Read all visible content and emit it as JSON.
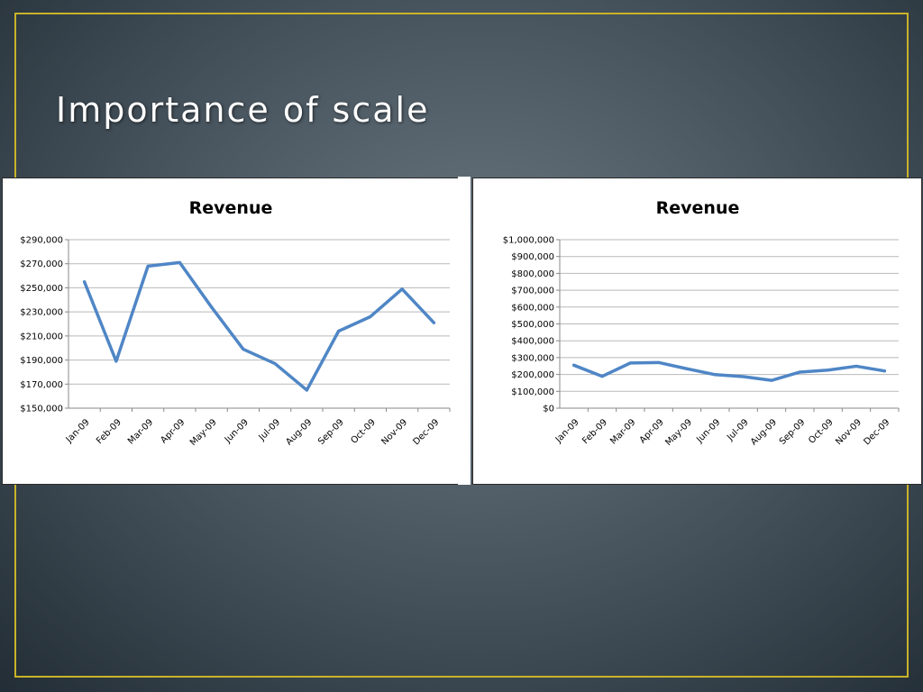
{
  "slide": {
    "title": "Importance of scale",
    "frame_color": "#c9b32a",
    "line_color": "#4f86c6"
  },
  "chart_data": [
    {
      "type": "line",
      "title": "Revenue",
      "categories": [
        "Jan-09",
        "Feb-09",
        "Mar-09",
        "Apr-09",
        "May-09",
        "Jun-09",
        "Jul-09",
        "Aug-09",
        "Sep-09",
        "Oct-09",
        "Nov-09",
        "Dec-09"
      ],
      "series": [
        {
          "values": [
            255000,
            189000,
            268000,
            271000,
            234000,
            199000,
            187000,
            165000,
            214000,
            226000,
            249000,
            221000
          ]
        }
      ],
      "ylim": [
        150000,
        290000
      ],
      "yticks": [
        "$150,000",
        "$170,000",
        "$190,000",
        "$210,000",
        "$230,000",
        "$250,000",
        "$270,000",
        "$290,000"
      ],
      "grid": true,
      "legend": "none"
    },
    {
      "type": "line",
      "title": "Revenue",
      "categories": [
        "Jan-09",
        "Feb-09",
        "Mar-09",
        "Apr-09",
        "May-09",
        "Jun-09",
        "Jul-09",
        "Aug-09",
        "Sep-09",
        "Oct-09",
        "Nov-09",
        "Dec-09"
      ],
      "series": [
        {
          "values": [
            255000,
            189000,
            268000,
            271000,
            234000,
            199000,
            187000,
            165000,
            214000,
            226000,
            249000,
            221000
          ]
        }
      ],
      "ylim": [
        0,
        1000000
      ],
      "yticks": [
        "$0",
        "$100,000",
        "$200,000",
        "$300,000",
        "$400,000",
        "$500,000",
        "$600,000",
        "$700,000",
        "$800,000",
        "$900,000",
        "$1,000,000"
      ],
      "grid": true,
      "legend": "none"
    }
  ]
}
